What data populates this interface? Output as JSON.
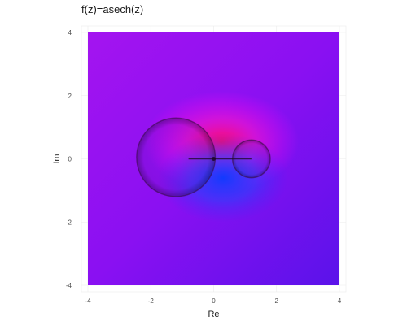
{
  "chart_data": {
    "type": "heatmap",
    "title": "f(z)=asech(z)",
    "xlabel": "Re",
    "ylabel": "Im",
    "xlim": [
      -4,
      4
    ],
    "ylim": [
      -4,
      4
    ],
    "x_ticks": [
      -4,
      -2,
      0,
      2,
      4
    ],
    "y_ticks": [
      -4,
      -2,
      0,
      2,
      4
    ],
    "function": "asech(z)",
    "coloring": "domain coloring: hue by argument, brightness contours by modulus",
    "grid": true,
    "legend": "none"
  }
}
